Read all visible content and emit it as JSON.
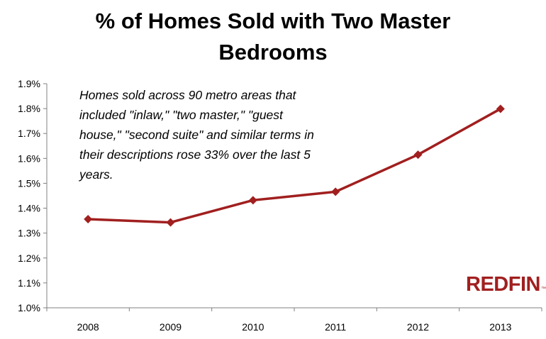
{
  "chart_data": {
    "type": "line",
    "title": "% of Homes Sold with Two Master Bedrooms",
    "title_lines": [
      "% of Homes Sold with Two Master",
      "Bedrooms"
    ],
    "categories": [
      "2008",
      "2009",
      "2010",
      "2011",
      "2012",
      "2013"
    ],
    "series": [
      {
        "values": [
          1.356,
          1.343,
          1.432,
          1.466,
          1.615,
          1.799
        ]
      }
    ],
    "yticks": [
      "1.0%",
      "1.1%",
      "1.2%",
      "1.3%",
      "1.4%",
      "1.5%",
      "1.6%",
      "1.7%",
      "1.8%",
      "1.9%"
    ],
    "ylim": [
      1.0,
      1.9
    ],
    "xlabel": "",
    "ylabel": "",
    "grid": false,
    "legend": "none",
    "line_color": "#a11f1f",
    "marker": "diamond",
    "annotation": "Homes sold across 90 metro areas that included \"inlaw,\" \"two master,\" \"guest house,\" \"second suite\" and similar terms in their descriptions rose 33% over the last 5 years.",
    "annotation_lines": [
      "Homes sold across 90 metro areas that",
      "included \"inlaw,\" \"two master,\" \"guest",
      "house,\" \"second suite\" and similar terms in",
      "their descriptions rose 33% over the last 5",
      "years."
    ]
  },
  "logo": {
    "text": "REDFIN",
    "mark": "™",
    "color": "#a11f1f"
  }
}
